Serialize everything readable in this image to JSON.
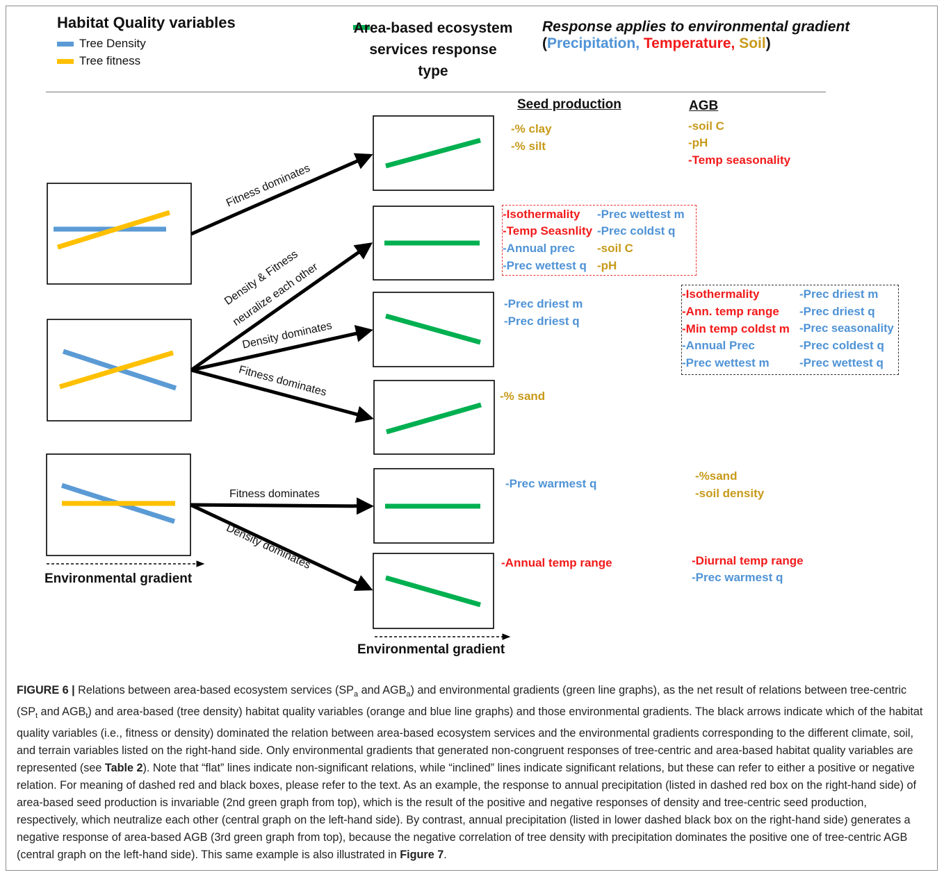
{
  "legend": {
    "title": "Habitat Quality variables",
    "items": [
      {
        "label": "Tree Density",
        "color": "#5b9bd5"
      },
      {
        "label": "Tree fitness",
        "color": "#ffc000"
      }
    ],
    "green_label": "Area-based ecosystem services response type",
    "green_color": "#00b050"
  },
  "response_note": {
    "line1": "Response applies to environmental gradient",
    "open": "(",
    "precipitation": "Precipitation,",
    "temperature": "Temperature,",
    "soil": "Soil",
    "close": ")"
  },
  "columns": {
    "seed": "Seed production",
    "agb": "AGB"
  },
  "arrows": {
    "a1": "Fitness dominates",
    "a2a": "Density & Fitness",
    "a2b": "neuralize each other",
    "a3": "Density dominates",
    "a4": "Fitness dominates",
    "a5": "Fitness dominates",
    "a6": "Density dominates"
  },
  "env_gradient": "Environmental gradient",
  "seed": {
    "g1": [
      "-% clay",
      "-% silt"
    ],
    "g2_left": [
      "-Isothermality",
      "-Temp Seasnlity",
      "-Annual prec",
      "-Prec wettest q"
    ],
    "g2_right": [
      "-Prec wettest m",
      "-Prec coldst q",
      "-soil C",
      "-pH"
    ],
    "g3": [
      "-Prec driest m",
      "-Prec driest q"
    ],
    "g4": [
      "-% sand"
    ],
    "g5": [
      "-Prec warmest q"
    ],
    "g6": [
      "-Annual temp range"
    ]
  },
  "agb": {
    "g1": [
      "-soil C",
      "-pH",
      "-Temp seasonality"
    ],
    "g3_left": [
      "-Isothermality",
      "-Ann. temp range",
      "-Min temp coldst m",
      "-Annual Prec",
      "-Prec wettest m"
    ],
    "g3_right": [
      "-Prec driest m",
      "-Prec driest q",
      "-Prec seasonality",
      "-Prec coldest q",
      "-Prec wettest q"
    ],
    "g5": [
      "-%sand",
      "-soil density"
    ],
    "g6": [
      "-Diurnal temp range",
      "-Prec warmest q"
    ]
  },
  "caption": {
    "fig": "FIGURE 6 |",
    "t1": " Relations between area-based ecosystem services (SP",
    "s1": "a",
    "t2": " and AGB",
    "s2": "a",
    "t3": ") and environmental gradients (green line graphs), as the net result of relations between tree-centric (SP",
    "s3": "t",
    "t4": " and AGB",
    "s4": "t",
    "t5": ") and area-based (tree density) habitat quality variables (orange and blue line graphs) and those environmental gradients. The black arrows indicate which of the habitat quality variables (i.e., fitness or density) dominated the relation between area-based ecosystem services and the environmental gradients corresponding to the different climate, soil, and terrain variables listed on the right-hand side. Only environmental gradients that generated non-congruent responses of tree-centric and area-based habitat quality variables are represented (see ",
    "ref1": "Table 2",
    "t6": "). Note that “flat” lines indicate non-significant relations, while “inclined” lines indicate significant relations, but these can refer to either a positive or negative relation. For meaning of dashed red and black boxes, please refer to the text. As an example, the response to annual precipitation (listed in dashed red box on the right-hand side) of area-based seed production is invariable (2nd green graph from top), which is the result of the positive and negative responses of density and tree-centric seed production, respectively, which neutralize each other (central graph on the left-hand side). By contrast, annual precipitation (listed in lower dashed black box on the right-hand side) generates a negative response of area-based AGB (3rd green graph from top), because the negative correlation of tree density with precipitation dominates the positive one of tree-centric AGB (central graph on the left-hand side). This same example is also illustrated in ",
    "ref2": "Figure 7",
    "t7": "."
  }
}
